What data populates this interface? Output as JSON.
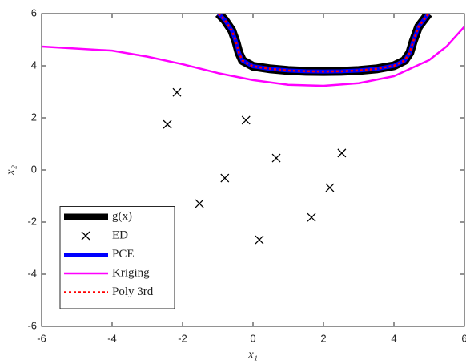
{
  "chart_data": {
    "type": "line",
    "xlabel": "x₁",
    "ylabel": "x₂",
    "xlim": [
      -6,
      6
    ],
    "ylim": [
      -6,
      6
    ],
    "xticks": [
      -6,
      -4,
      -2,
      0,
      2,
      4,
      6
    ],
    "yticks": [
      -6,
      -4,
      -2,
      0,
      2,
      4,
      6
    ],
    "grid": false,
    "legend": "lower left",
    "series": [
      {
        "name": "g(x)",
        "color": "#000000",
        "style": "thick",
        "x": [
          -0.98,
          -0.8,
          -0.6,
          -0.48,
          -0.4,
          -0.3,
          0,
          0.5,
          1,
          1.5,
          2,
          2.5,
          3,
          3.5,
          4,
          4.3,
          4.45,
          4.55,
          4.7,
          4.98
        ],
        "y": [
          6,
          5.75,
          5.35,
          4.9,
          4.5,
          4.2,
          3.98,
          3.88,
          3.82,
          3.79,
          3.78,
          3.79,
          3.82,
          3.88,
          4.0,
          4.2,
          4.5,
          4.95,
          5.5,
          6
        ]
      },
      {
        "name": "ED",
        "color": "#000000",
        "style": "marker",
        "x": [
          -2.16,
          -2.43,
          -0.2,
          0.66,
          2.52,
          -0.8,
          -1.52,
          2.18,
          1.66,
          0.18
        ],
        "y": [
          2.98,
          1.75,
          1.91,
          0.46,
          0.65,
          -0.31,
          -1.29,
          -0.68,
          -1.82,
          -2.68
        ]
      },
      {
        "name": "PCE",
        "color": "#0000ff",
        "style": "medium",
        "x": [
          -0.98,
          -0.8,
          -0.6,
          -0.48,
          -0.4,
          -0.3,
          0,
          0.5,
          1,
          1.5,
          2,
          2.5,
          3,
          3.5,
          4,
          4.3,
          4.45,
          4.55,
          4.7,
          4.98
        ],
        "y": [
          6,
          5.75,
          5.35,
          4.9,
          4.5,
          4.2,
          3.98,
          3.88,
          3.82,
          3.79,
          3.78,
          3.79,
          3.82,
          3.88,
          4.0,
          4.2,
          4.5,
          4.95,
          5.5,
          6
        ]
      },
      {
        "name": "Kriging",
        "color": "#ff00ff",
        "style": "thin",
        "x": [
          -6,
          -4,
          -3,
          -2,
          -1,
          0,
          1,
          2,
          3,
          4,
          5,
          5.5,
          6
        ],
        "y": [
          4.74,
          4.58,
          4.35,
          4.06,
          3.72,
          3.45,
          3.27,
          3.23,
          3.33,
          3.6,
          4.22,
          4.75,
          5.5
        ]
      },
      {
        "name": "Poly 3rd",
        "color": "#ff0000",
        "style": "dotted",
        "x": [
          -0.98,
          -0.8,
          -0.6,
          -0.48,
          -0.4,
          -0.3,
          0,
          0.5,
          1,
          1.5,
          2,
          2.5,
          3,
          3.5,
          4,
          4.3,
          4.45,
          4.55,
          4.7,
          4.98
        ],
        "y": [
          6,
          5.75,
          5.35,
          4.9,
          4.5,
          4.2,
          3.98,
          3.88,
          3.82,
          3.79,
          3.78,
          3.79,
          3.82,
          3.88,
          4.0,
          4.2,
          4.5,
          4.95,
          5.5,
          6
        ]
      }
    ]
  }
}
